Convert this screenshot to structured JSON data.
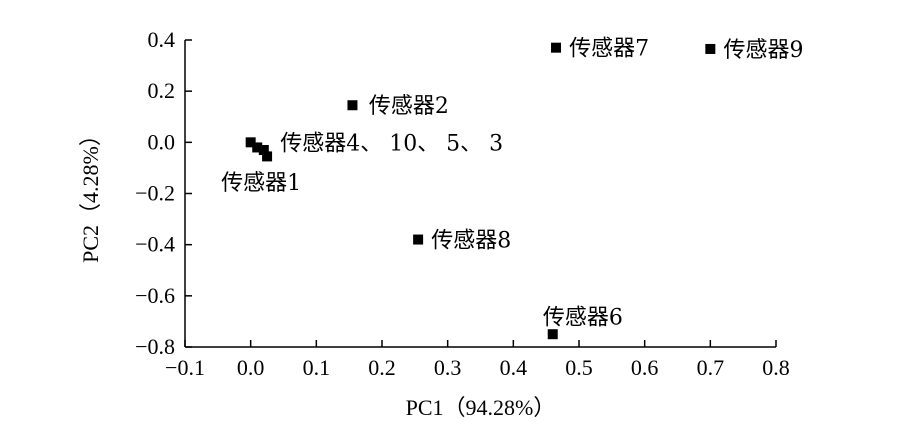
{
  "chart_data": {
    "type": "scatter",
    "title": "",
    "xlabel": "PC1（94.28%）",
    "ylabel": "PC2（4.28%）",
    "xlim": [
      -0.1,
      0.8
    ],
    "ylim": [
      -0.8,
      0.4
    ],
    "xticks": [
      -0.1,
      0.0,
      0.1,
      0.2,
      0.3,
      0.4,
      0.5,
      0.6,
      0.7,
      0.8
    ],
    "xtick_labels": [
      "−0.1",
      "0.0",
      "0.1",
      "0.2",
      "0.3",
      "0.4",
      "0.5",
      "0.6",
      "0.7",
      "0.8"
    ],
    "yticks": [
      0.4,
      0.2,
      0.0,
      -0.2,
      -0.4,
      -0.6,
      -0.8
    ],
    "ytick_labels": [
      "0.4",
      "0.2",
      "0.0",
      "−0.2",
      "−0.4",
      "−0.6",
      "−0.8"
    ],
    "grid": false,
    "points": [
      {
        "x": 0.0,
        "y": 0.0
      },
      {
        "x": 0.01,
        "y": -0.02
      },
      {
        "x": 0.02,
        "y": -0.03
      },
      {
        "x": 0.025,
        "y": -0.055
      },
      {
        "x": 0.155,
        "y": 0.145
      },
      {
        "x": 0.465,
        "y": 0.37
      },
      {
        "x": 0.7,
        "y": 0.365
      },
      {
        "x": 0.255,
        "y": -0.38
      },
      {
        "x": 0.46,
        "y": -0.75
      }
    ],
    "annotations": [
      {
        "text": "传感器4、 10、 5、 3",
        "x": 0.045,
        "y": 0.0
      },
      {
        "text": "传感器1",
        "x": -0.045,
        "y": -0.155
      },
      {
        "text": "传感器2",
        "x": 0.18,
        "y": 0.145
      },
      {
        "text": "传感器7",
        "x": 0.485,
        "y": 0.37
      },
      {
        "text": "传感器9",
        "x": 0.72,
        "y": 0.365
      },
      {
        "text": "传感器8",
        "x": 0.275,
        "y": -0.38
      },
      {
        "text": "传感器6",
        "x": 0.445,
        "y": -0.68
      }
    ]
  }
}
